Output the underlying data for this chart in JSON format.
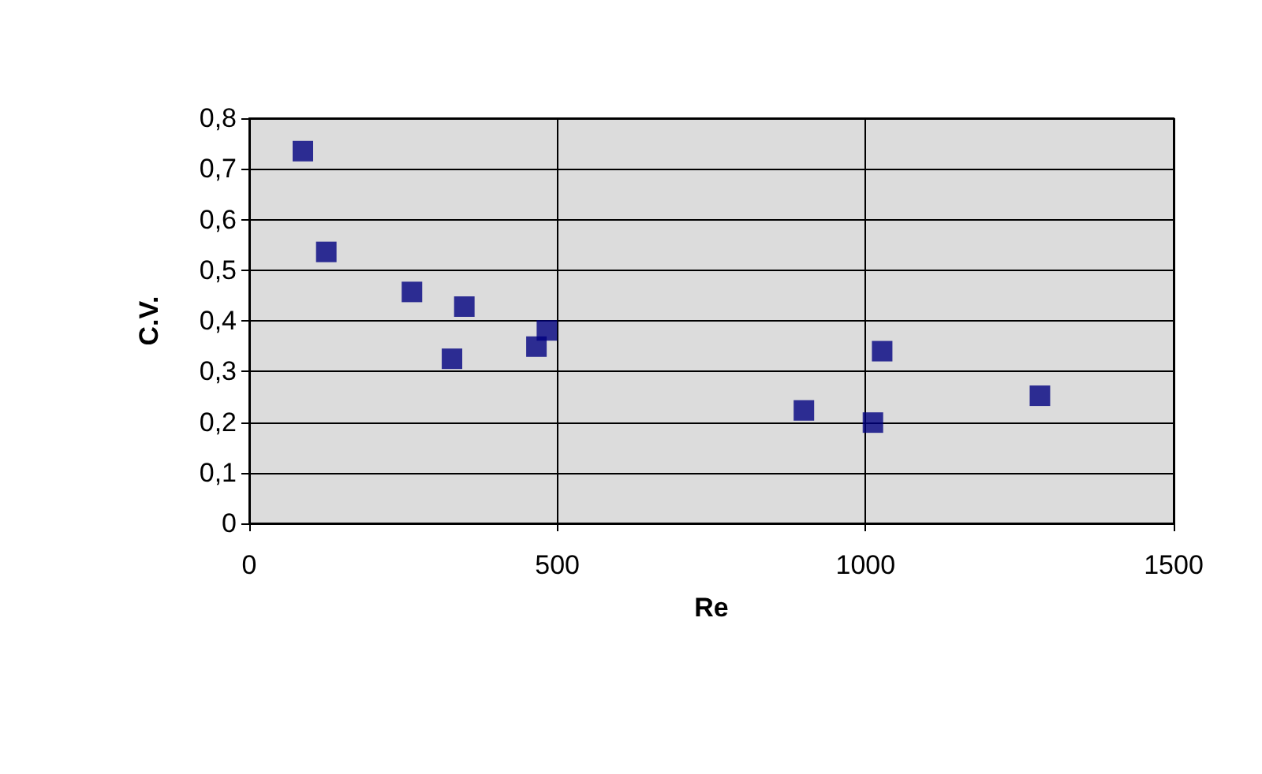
{
  "chart_data": {
    "type": "scatter",
    "xlabel": "Re",
    "ylabel": "C.V.",
    "x": [
      87,
      125,
      264,
      329,
      349,
      466,
      483,
      900,
      1012,
      1027,
      1283
    ],
    "series": [
      {
        "color": "#000080",
        "values": [
          0.735,
          0.536,
          0.457,
          0.325,
          0.428,
          0.349,
          0.381,
          0.223,
          0.199,
          0.34,
          0.252
        ]
      }
    ],
    "xlim": [
      0,
      1500
    ],
    "xticks": [
      0,
      500,
      1000,
      1500
    ],
    "ylim": [
      0,
      0.8
    ],
    "yticks": [
      0,
      {
        "value": 0.1,
        "label": "0,1"
      },
      {
        "value": 0.2,
        "label": "0,2"
      },
      {
        "value": 0.3,
        "label": "0,3"
      },
      {
        "value": 0.4,
        "label": "0,4"
      },
      {
        "value": 0.5,
        "label": "0,5"
      },
      {
        "value": 0.6,
        "label": "0,6"
      },
      {
        "value": 0.7,
        "label": "0,7"
      },
      {
        "value": 0.8,
        "label": "0,8"
      }
    ],
    "grid": true,
    "marker": "square"
  }
}
